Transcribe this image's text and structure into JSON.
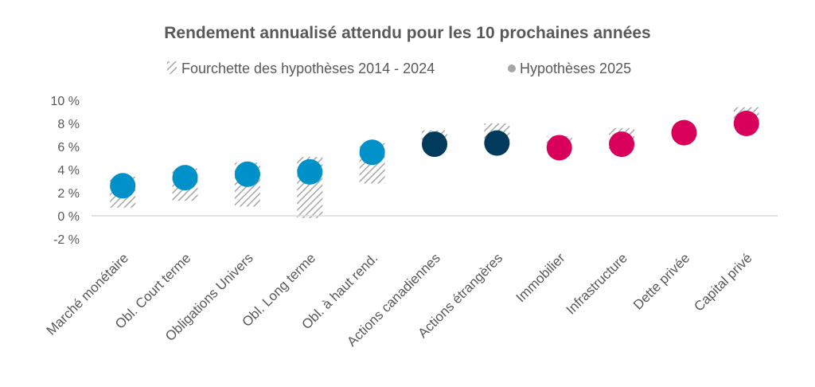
{
  "chart_data": {
    "type": "scatter",
    "title": "Rendement annualisé attendu pour les 10 prochaines années",
    "legend": {
      "placement": "top",
      "entries": [
        {
          "name": "Fourchette des hypothèses 2014 - 2024",
          "marker": "hatched-bar"
        },
        {
          "name": "Hypothèses 2025",
          "marker": "dot",
          "color": "#a6a6a6"
        }
      ]
    },
    "ylim": [
      -2,
      10
    ],
    "yticks": [
      10,
      8,
      6,
      4,
      2,
      0,
      -2
    ],
    "ytick_labels": [
      "10 %",
      "8 %",
      "6 %",
      "4 %",
      "2 %",
      "0 %",
      "-2 %"
    ],
    "categories": [
      "Marché monétaire",
      "Obl. Court terme",
      "Obligations Univers",
      "Obl. Long terme",
      "Obl. à haut rend.",
      "Actions canadiennes",
      "Actions étrangères",
      "Immobilier",
      "Infrastructure",
      "Dette privée",
      "Capital privé"
    ],
    "range_2014_2024": [
      [
        0.7,
        3.4
      ],
      [
        1.3,
        4.1
      ],
      [
        0.8,
        4.6
      ],
      [
        -0.2,
        5.1
      ],
      [
        2.8,
        6.3
      ],
      [
        6.1,
        7.4
      ],
      [
        6.4,
        8.0
      ],
      [
        6.2,
        6.9
      ],
      [
        5.7,
        7.6
      ],
      [
        7.0,
        7.4
      ],
      [
        8.1,
        9.4
      ]
    ],
    "values_2025": [
      2.6,
      3.3,
      3.6,
      3.8,
      5.5,
      6.2,
      6.3,
      5.9,
      6.2,
      7.2,
      8.0
    ],
    "point_colors": [
      "#0091c9",
      "#0091c9",
      "#0091c9",
      "#0091c9",
      "#0091c9",
      "#003a5c",
      "#003a5c",
      "#d8005a",
      "#d8005a",
      "#d8005a",
      "#d8005a"
    ],
    "colors": {
      "hatch": "#a6a6a6",
      "axis": "#d9d9d9",
      "text": "#595959",
      "legend_dot": "#a6a6a6"
    }
  }
}
